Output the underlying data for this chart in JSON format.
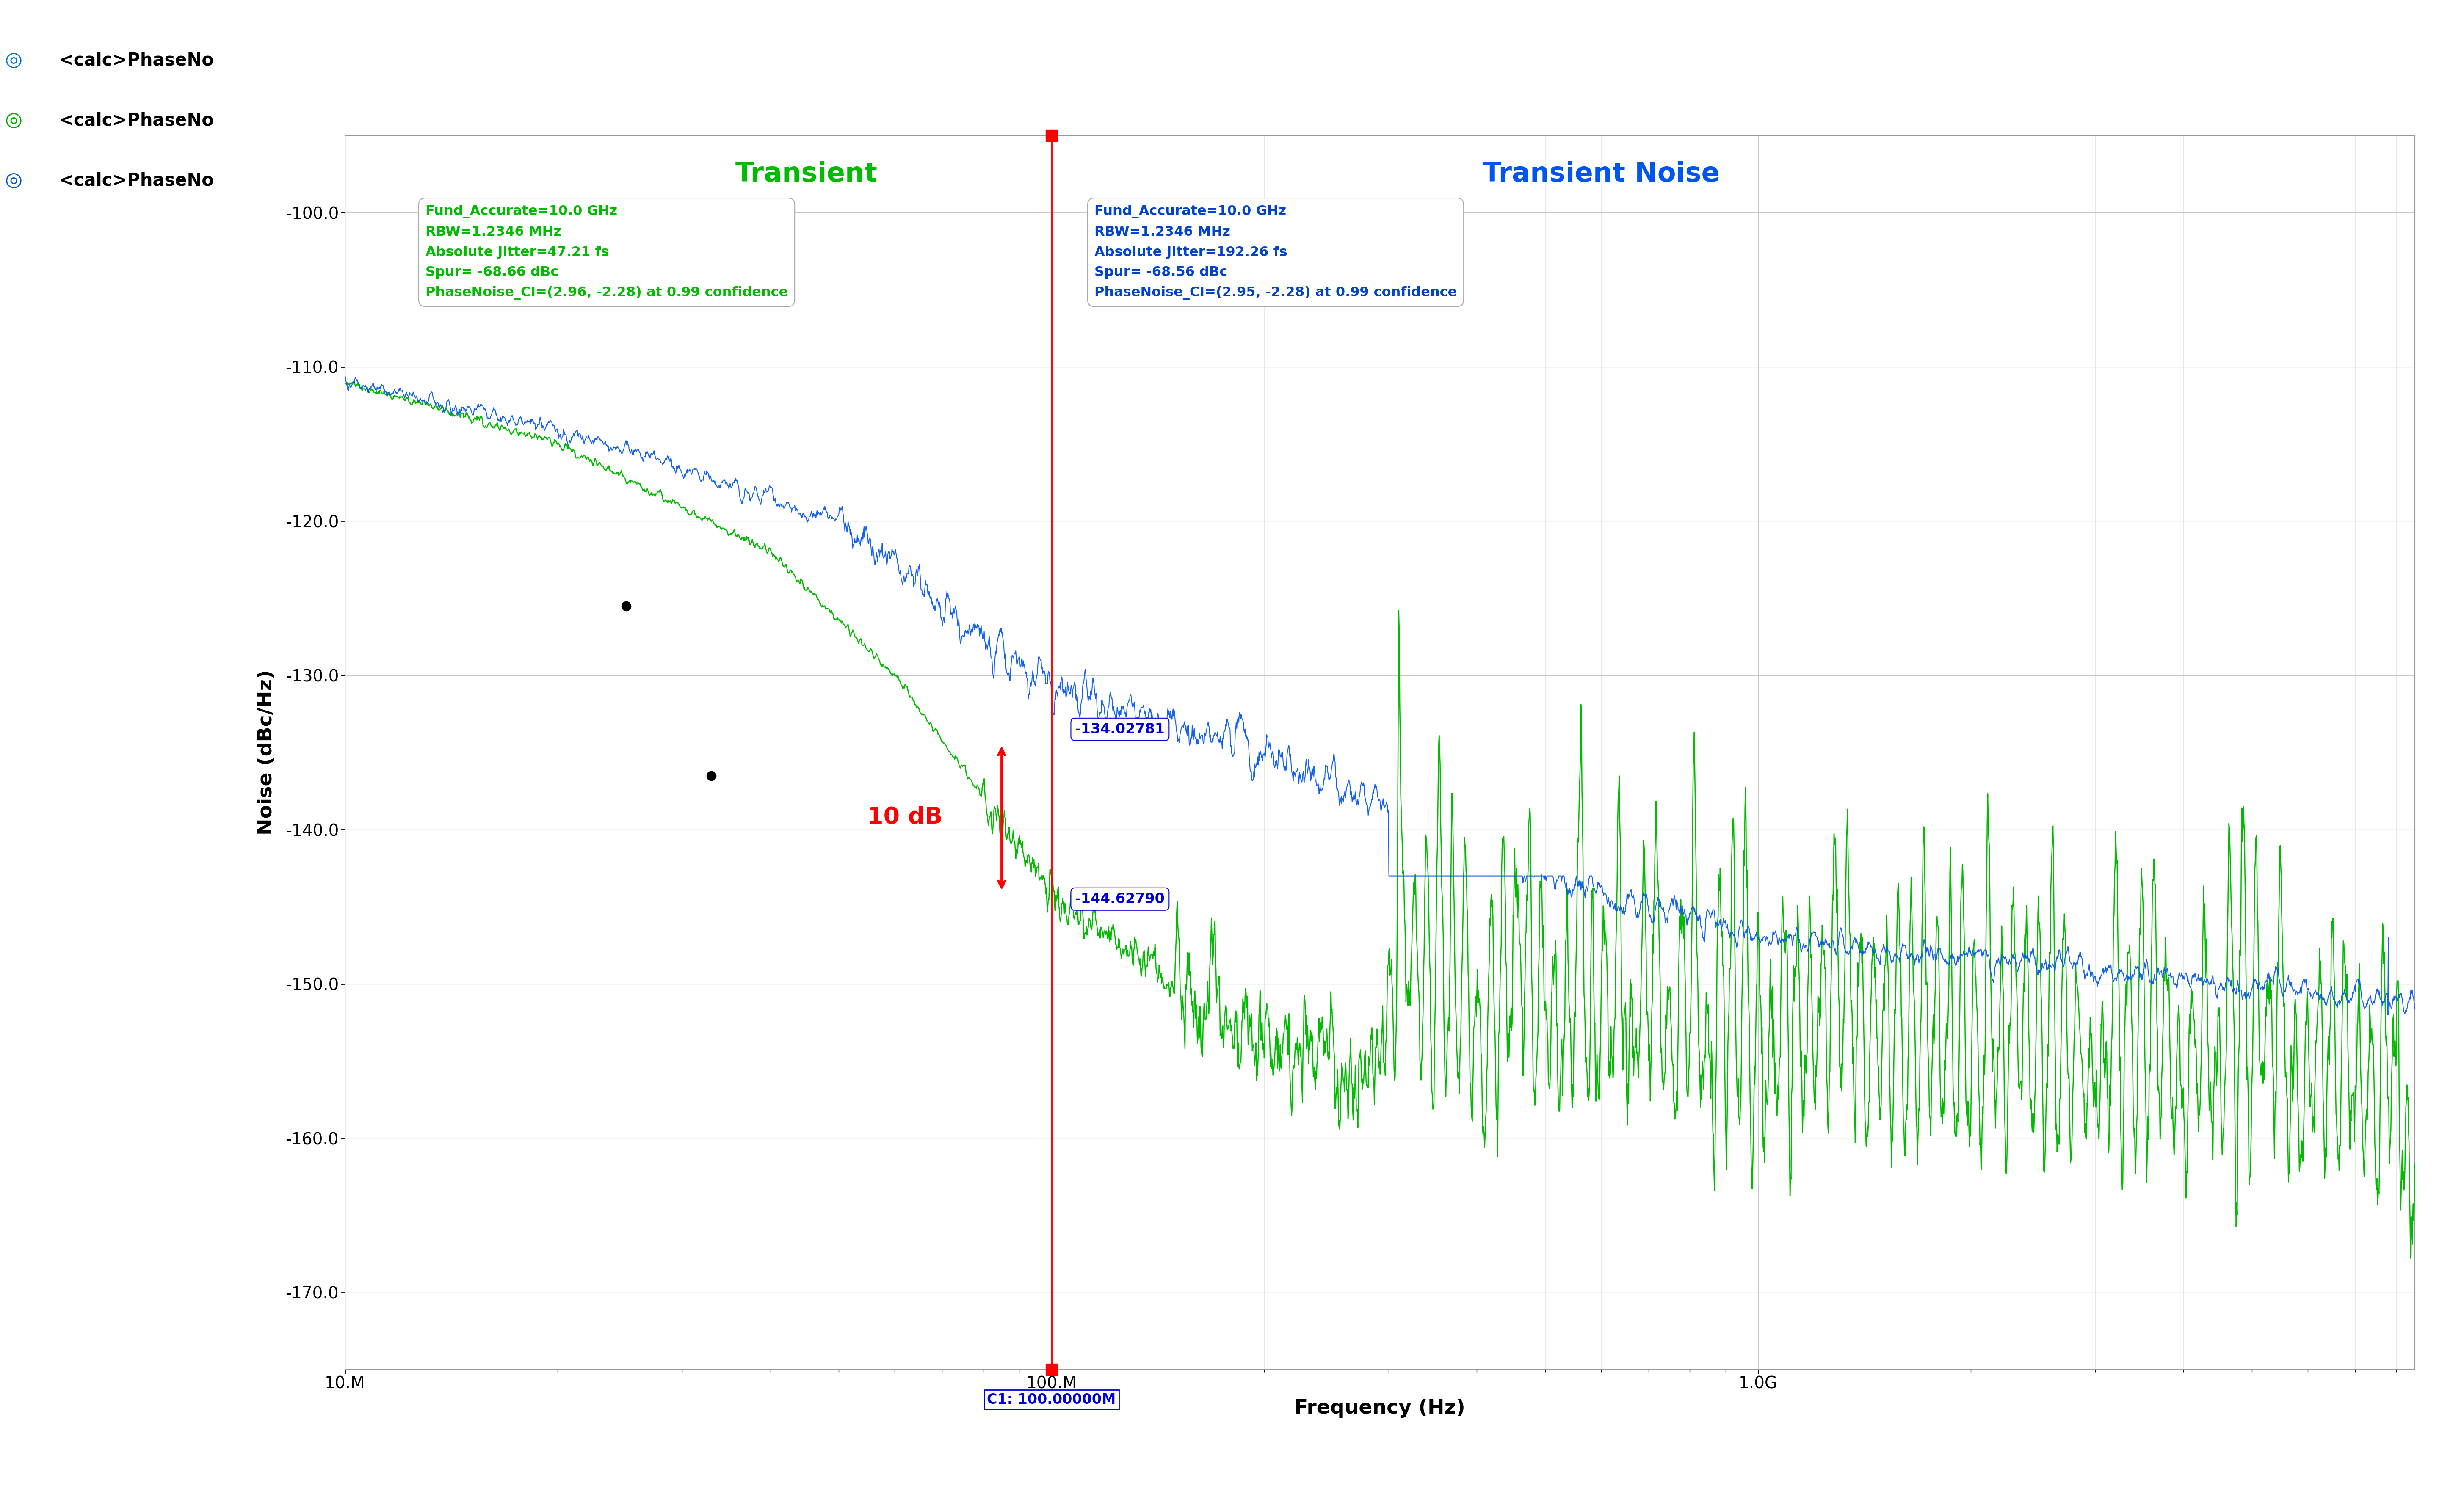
{
  "xlabel": "Frequency (Hz)",
  "ylabel": "Noise (dBc/Hz)",
  "xlim_log": [
    10000000.0,
    8500000000.0
  ],
  "ylim": [
    -175,
    -95
  ],
  "yticks": [
    -170,
    -160,
    -150,
    -140,
    -130,
    -120,
    -110,
    -100
  ],
  "background_color": "#ffffff",
  "grid_color": "#c8c8c8",
  "transient_label": "Transient",
  "transient_noise_label": "Transient Noise",
  "transient_color": "#00bb00",
  "transient_noise_color": "#0055ee",
  "red_line_x": 100000000.0,
  "red_line_color": "#ff0000",
  "cursor_label": "C1: 100.00000M",
  "cursor_label_color": "#0000dd",
  "annotation_upper": "-134.02781",
  "annotation_lower": "-144.62790",
  "annotation_color": "#0000cc",
  "arrow_label": "10 dB",
  "arrow_color": "#ff0000",
  "transient_info": "Fund_Accurate=10.0 GHz\nRBW=1.2346 MHz\nAbsolute Jitter=47.21 fs\nSpur= -68.66 dBc\nPhaseNoise_CI=(2.96, -2.28) at 0.99 confidence",
  "transient_noise_info": "Fund_Accurate=10.0 GHz\nRBW=1.2346 MHz\nAbsolute Jitter=192.26 fs\nSpur= -68.56 dBc\nPhaseNoise_CI=(2.95, -2.28) at 0.99 confidence",
  "info_color_green": "#00bb00",
  "info_color_blue": "#0044cc",
  "legend_items": [
    "<calc>PhaseNo",
    "<calc>PhaseNo",
    "<calc>PhaseNo"
  ],
  "legend_colors_circle": [
    "#0077cc",
    "#00aa00",
    "#0055cc"
  ],
  "legend_text_color": "#000000"
}
